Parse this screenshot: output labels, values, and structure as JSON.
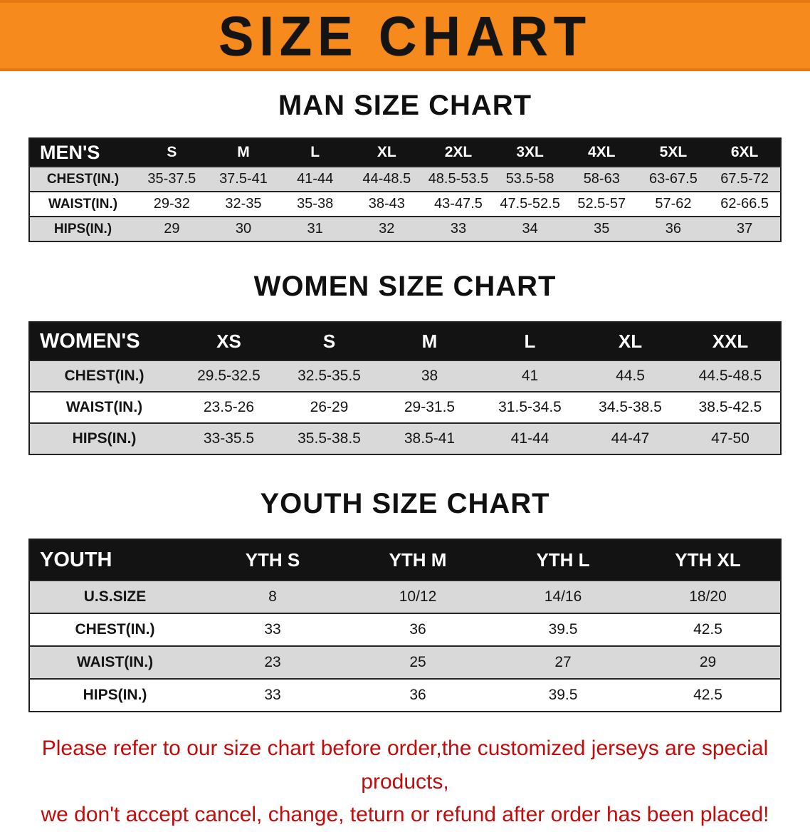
{
  "banner": {
    "title": "SIZE CHART",
    "bg_color": "#f68a1d",
    "text_color": "#141414"
  },
  "chart_data": [
    {
      "type": "table",
      "title": "MAN SIZE CHART",
      "corner_label": "MEN'S",
      "columns": [
        "S",
        "M",
        "L",
        "XL",
        "2XL",
        "3XL",
        "4XL",
        "5XL",
        "6XL"
      ],
      "rows": [
        {
          "label": "CHEST(IN.)",
          "values": [
            "35-37.5",
            "37.5-41",
            "41-44",
            "44-48.5",
            "48.5-53.5",
            "53.5-58",
            "58-63",
            "63-67.5",
            "67.5-72"
          ]
        },
        {
          "label": "WAIST(IN.)",
          "values": [
            "29-32",
            "32-35",
            "35-38",
            "38-43",
            "43-47.5",
            "47.5-52.5",
            "52.5-57",
            "57-62",
            "62-66.5"
          ]
        },
        {
          "label": "HIPS(IN.)",
          "values": [
            "29",
            "30",
            "31",
            "32",
            "33",
            "34",
            "35",
            "36",
            "37"
          ]
        }
      ]
    },
    {
      "type": "table",
      "title": "WOMEN SIZE CHART",
      "corner_label": "WOMEN'S",
      "columns": [
        "XS",
        "S",
        "M",
        "L",
        "XL",
        "XXL"
      ],
      "rows": [
        {
          "label": "CHEST(IN.)",
          "values": [
            "29.5-32.5",
            "32.5-35.5",
            "38",
            "41",
            "44.5",
            "44.5-48.5"
          ]
        },
        {
          "label": "WAIST(IN.)",
          "values": [
            "23.5-26",
            "26-29",
            "29-31.5",
            "31.5-34.5",
            "34.5-38.5",
            "38.5-42.5"
          ]
        },
        {
          "label": "HIPS(IN.)",
          "values": [
            "33-35.5",
            "35.5-38.5",
            "38.5-41",
            "41-44",
            "44-47",
            "47-50"
          ]
        }
      ]
    },
    {
      "type": "table",
      "title": "YOUTH SIZE CHART",
      "corner_label": "YOUTH",
      "columns": [
        "YTH S",
        "YTH M",
        "YTH L",
        "YTH XL"
      ],
      "rows": [
        {
          "label": "U.S.SIZE",
          "values": [
            "8",
            "10/12",
            "14/16",
            "18/20"
          ]
        },
        {
          "label": "CHEST(IN.)",
          "values": [
            "33",
            "36",
            "39.5",
            "42.5"
          ]
        },
        {
          "label": "WAIST(IN.)",
          "values": [
            "23",
            "25",
            "27",
            "29"
          ]
        },
        {
          "label": "HIPS(IN.)",
          "values": [
            "33",
            "36",
            "39.5",
            "42.5"
          ]
        }
      ]
    }
  ],
  "footer": {
    "line1": "Please refer to our size chart before order,the customized jerseys are special products,",
    "line2": "we don't accept cancel, change, teturn or refund after order has been placed!",
    "text_color": "#c30b0b"
  }
}
